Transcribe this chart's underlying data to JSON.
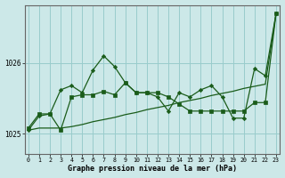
{
  "title": "Graphe pression niveau de la mer (hPa)",
  "bg_color": "#cce8e8",
  "grid_color": "#99cccc",
  "line_color": "#1a5c1a",
  "marker_color": "#1a5c1a",
  "xlim": [
    -0.3,
    23.3
  ],
  "ylim": [
    1024.72,
    1026.82
  ],
  "yticks": [
    1025,
    1026
  ],
  "xticks": [
    0,
    1,
    2,
    3,
    4,
    5,
    6,
    7,
    8,
    9,
    10,
    11,
    12,
    13,
    14,
    15,
    16,
    17,
    18,
    19,
    20,
    21,
    22,
    23
  ],
  "series_flat": [
    1025.05,
    1025.08,
    1025.08,
    1025.08,
    1025.1,
    1025.13,
    1025.17,
    1025.2,
    1025.23,
    1025.27,
    1025.3,
    1025.34,
    1025.37,
    1025.4,
    1025.44,
    1025.47,
    1025.5,
    1025.54,
    1025.57,
    1025.6,
    1025.64,
    1025.67,
    1025.7,
    1026.7
  ],
  "series_sq": [
    1025.08,
    1025.28,
    1025.28,
    1025.05,
    1025.52,
    1025.55,
    1025.55,
    1025.6,
    1025.55,
    1025.72,
    1025.58,
    1025.58,
    1025.58,
    1025.52,
    1025.42,
    1025.32,
    1025.32,
    1025.32,
    1025.32,
    1025.32,
    1025.32,
    1025.44,
    1025.44,
    1026.7
  ],
  "series_dm": [
    1025.05,
    1025.25,
    1025.28,
    1025.62,
    1025.68,
    1025.58,
    1025.9,
    1026.1,
    1025.95,
    1025.72,
    1025.58,
    1025.58,
    1025.52,
    1025.32,
    1025.58,
    1025.52,
    1025.62,
    1025.68,
    1025.52,
    1025.22,
    1025.22,
    1025.92,
    1025.82,
    1026.7
  ]
}
